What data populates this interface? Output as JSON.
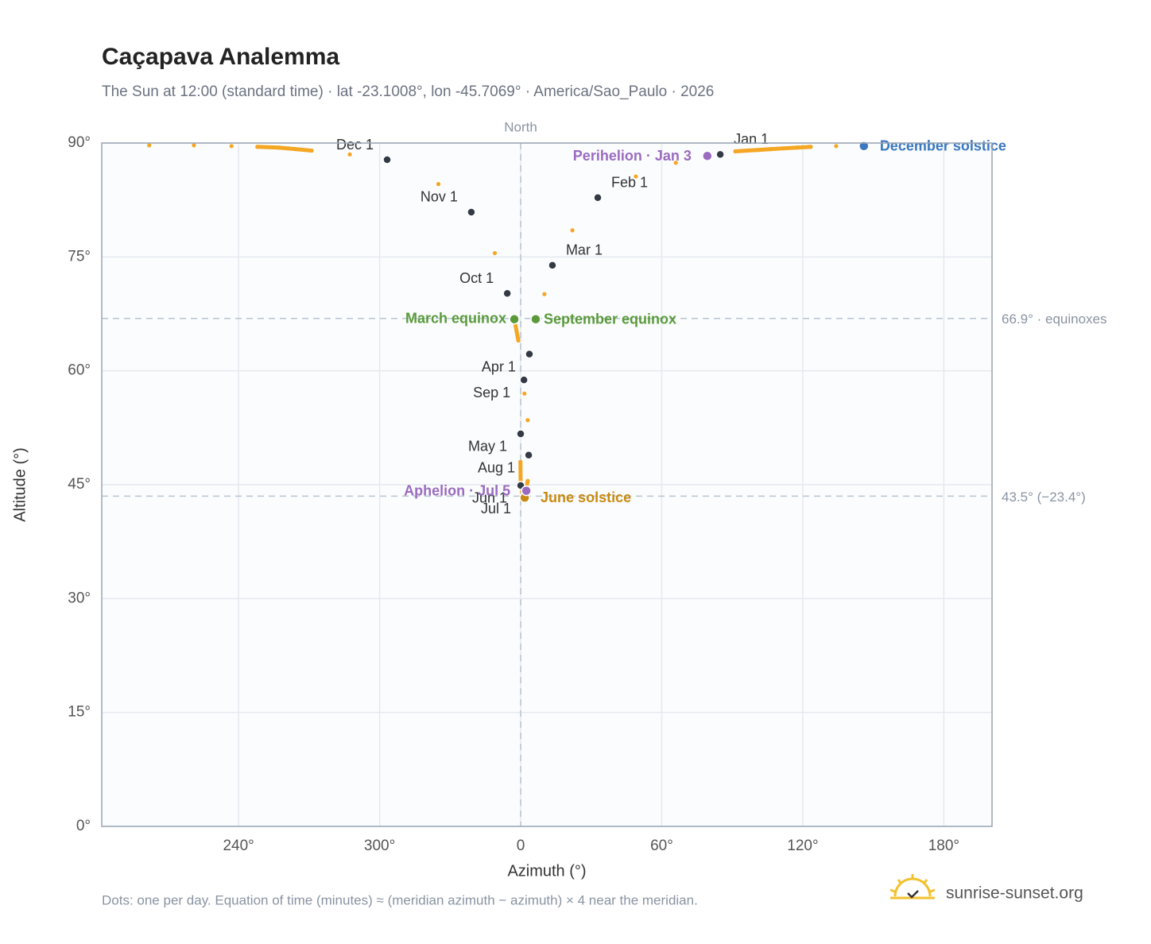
{
  "chart_data": {
    "type": "analemma",
    "title": "Caçapava Analemma",
    "subtitle": "The Sun at 12:00 (standard time) · lat -23.1008°, lon -45.7069° · America/Sao_Paulo · 2026",
    "x_label": "Azimuth (°)",
    "y_label": "Altitude (°)",
    "xlim": [
      -178.2,
      200.5
    ],
    "ylim": [
      0,
      90
    ],
    "xticks": [
      {
        "value": -120,
        "label": "240°"
      },
      {
        "value": -60,
        "label": "300°"
      },
      0,
      {
        "value": 60,
        "label": "60°"
      },
      {
        "value": 120,
        "label": "120°"
      },
      {
        "value": 180,
        "label": "180°"
      }
    ],
    "yticks": [
      {
        "value": 0,
        "label": "0°"
      },
      {
        "value": 15,
        "label": "15°"
      },
      {
        "value": 30,
        "label": "30°"
      },
      {
        "value": 45,
        "label": "45°"
      },
      {
        "value": 60,
        "label": "60°"
      },
      {
        "value": 75,
        "label": "75°"
      },
      {
        "value": 90,
        "label": "90°"
      }
    ],
    "grid": true,
    "series": [
      {
        "color": "#f5a623",
        "x": [
          84.9,
          66,
          49,
          32.8,
          22,
          13.5,
          10.1,
          6.4,
          3.7,
          1.6,
          0,
          -0.1,
          0,
          1.2,
          1.7,
          3,
          3.4,
          3,
          1.4,
          -1,
          -2.7,
          -5.7,
          -11,
          -21,
          -35,
          -56.8,
          -72.7,
          -88.9,
          -95.7,
          -103,
          -112,
          -123,
          -139,
          -158,
          134.2,
          123.4,
          117.6,
          111.9,
          106.5,
          101.4,
          96.3,
          91.3
        ],
        "y": [
          88.5,
          87.4,
          85.6,
          82.8,
          78.5,
          73.9,
          70.1,
          66.8,
          62.2,
          57,
          51.7,
          48,
          44.9,
          43.4,
          43.5,
          45.5,
          48.9,
          53.5,
          58.8,
          64,
          66.8,
          70.2,
          75.5,
          80.9,
          84.6,
          87.8,
          88.5,
          89.0,
          89.2,
          89.4,
          89.5,
          89.6,
          89.7,
          89.7,
          89.6,
          89.5,
          89.4,
          89.3,
          89.2,
          89.1,
          89.0,
          88.9
        ]
      }
    ],
    "month_markers": {
      "color": "#333a45",
      "labels": [
        "Jan 1",
        "Feb 1",
        "Mar 1",
        "Apr 1",
        "May 1",
        "Jun 1",
        "Jul 1",
        "Aug 1",
        "Sep 1",
        "Oct 1",
        "Nov 1",
        "Dec 1"
      ],
      "x": [
        84.9,
        32.8,
        13.5,
        3.7,
        0,
        0,
        1.7,
        3.4,
        1.4,
        -5.7,
        -21,
        -56.8
      ],
      "y": [
        88.5,
        82.8,
        73.9,
        62.2,
        51.7,
        44.9,
        43.5,
        48.9,
        58.8,
        70.2,
        80.9,
        87.8
      ]
    },
    "events": [
      {
        "label": "March equinox",
        "x": -2.7,
        "y": 66.8,
        "color": "#5a9a3a"
      },
      {
        "label": "September equinox",
        "x": 6.4,
        "y": 66.8,
        "color": "#5a9a3a"
      },
      {
        "label": "June solstice",
        "x": 1.7,
        "y": 43.3,
        "color": "#c98a10"
      },
      {
        "label": "Aphelion · Jul 5",
        "x": 2.4,
        "y": 44.2,
        "color": "#9b6bbf"
      },
      {
        "label": "Perihelion · Jan 3",
        "x": 79.4,
        "y": 88.3,
        "color": "#9b6bbf"
      },
      {
        "label": "December solstice",
        "x": 146,
        "y": 89.6,
        "color": "#3a78c0"
      }
    ],
    "ref_lines": [
      {
        "y": 66.9,
        "label": "66.9° · equinoxes"
      },
      {
        "y": 43.5,
        "label": "43.5° (−23.4°)"
      }
    ],
    "meridian": {
      "x": 0,
      "label": "North"
    },
    "footnote": "Dots: one per day. Equation of time (minutes) ≈ (meridian azimuth − azimuth) × 4 near the meridian.",
    "brand": "sunrise-sunset.org"
  }
}
